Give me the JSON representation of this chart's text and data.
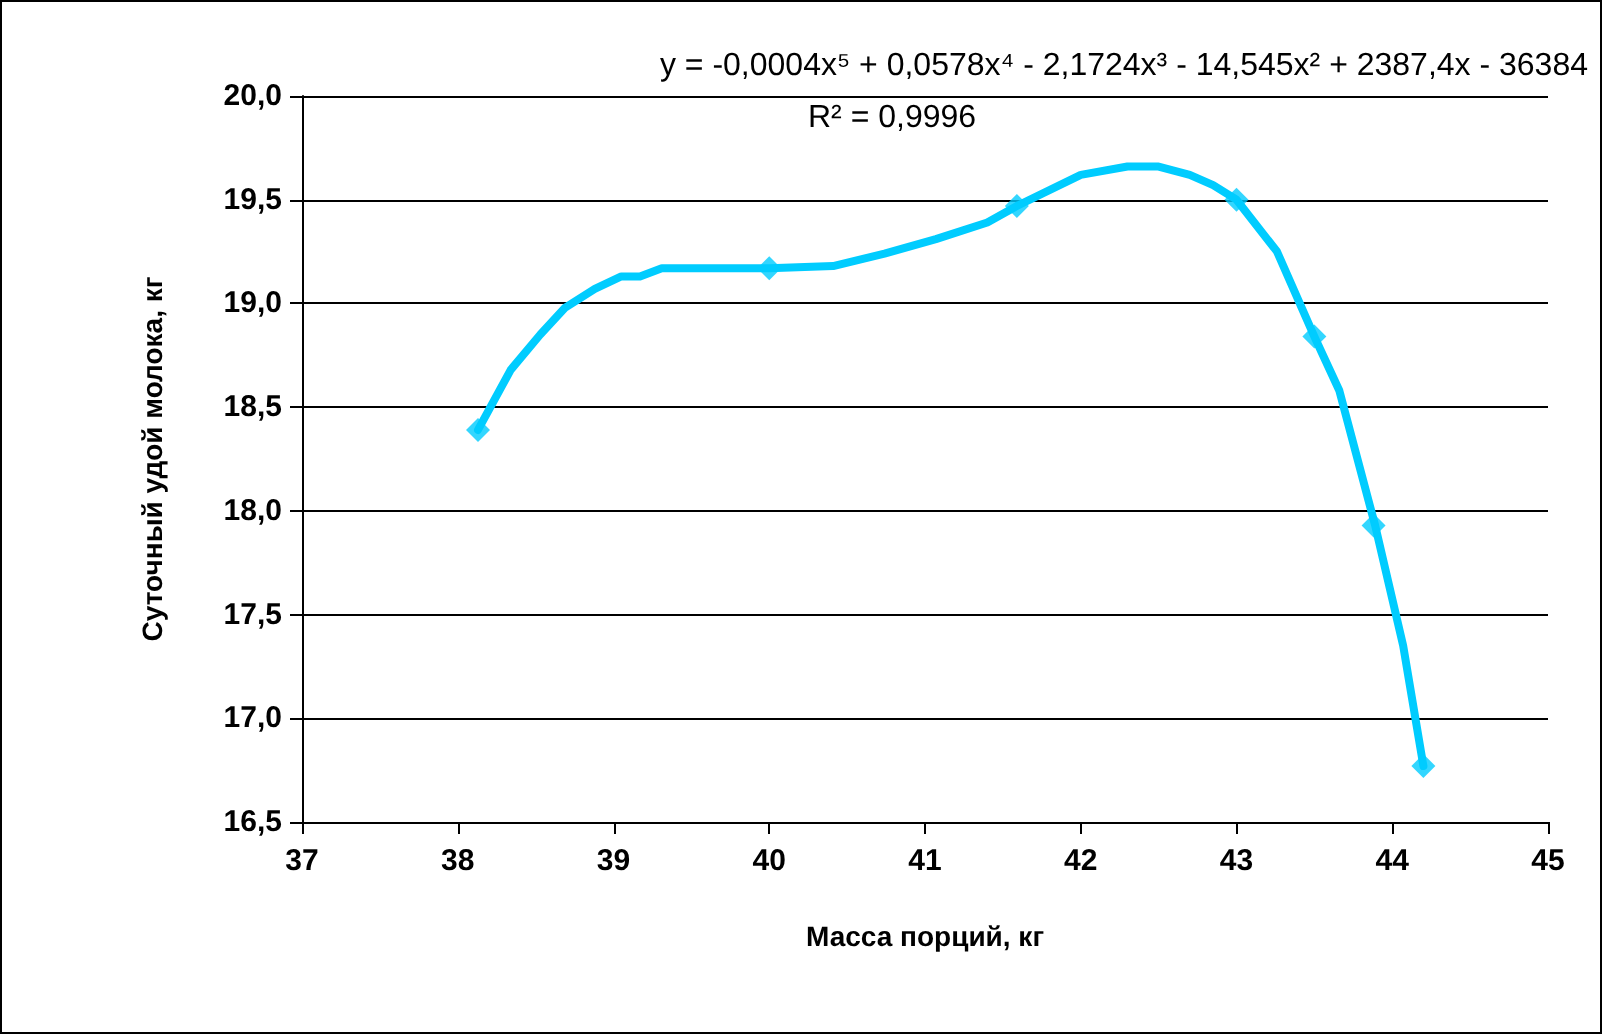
{
  "chart_data": {
    "type": "scatter",
    "xlabel": "Масса порций, кг",
    "ylabel": "Суточный удой молока, кг",
    "annotations": [
      "y = -0,0004x⁵ + 0,0578x⁴ - 2,1724x³ - 14,545x² + 2387,4x - 36384",
      "R² = 0,9996"
    ],
    "xlim": [
      37,
      45
    ],
    "xticks": [
      37,
      38,
      39,
      40,
      41,
      42,
      43,
      44,
      45
    ],
    "ylim": [
      16.5,
      20
    ],
    "yticks": [
      {
        "value": 16.5,
        "label": "16,5"
      },
      {
        "value": 17,
        "label": "17,0"
      },
      {
        "value": 17.5,
        "label": "17,5"
      },
      {
        "value": 18,
        "label": "18,0"
      },
      {
        "value": 18.5,
        "label": "18,5"
      },
      {
        "value": 19,
        "label": "19,0"
      },
      {
        "value": 19.5,
        "label": "19,5"
      },
      {
        "value": 20,
        "label": "20,0"
      }
    ],
    "grid": "y",
    "series": [
      {
        "type": "line",
        "color": "#00ccff",
        "marker": "none",
        "line_style": "solid",
        "x": [
          38.13,
          38.34,
          38.53,
          38.69,
          38.88,
          39.05,
          39.17,
          39.31,
          40.0,
          40.41,
          40.74,
          41.07,
          41.4,
          41.59,
          42.0,
          42.3,
          42.5,
          42.7,
          42.85,
          43.0,
          43.26,
          43.5,
          43.66,
          43.89,
          44.07,
          44.2
        ],
        "values": [
          18.39,
          18.68,
          18.85,
          18.98,
          19.07,
          19.13,
          19.13,
          19.17,
          19.17,
          19.18,
          19.24,
          19.31,
          19.39,
          19.47,
          19.62,
          19.66,
          19.66,
          19.62,
          19.57,
          19.5,
          19.25,
          18.84,
          18.58,
          17.93,
          17.35,
          16.77
        ]
      },
      {
        "color": "#00ccff",
        "marker": "diamond",
        "x": [
          38.13,
          40.0,
          41.59,
          43.0,
          43.5,
          43.88,
          44.2
        ],
        "values": [
          18.39,
          19.17,
          19.47,
          19.5,
          18.84,
          17.93,
          16.77
        ]
      }
    ]
  }
}
